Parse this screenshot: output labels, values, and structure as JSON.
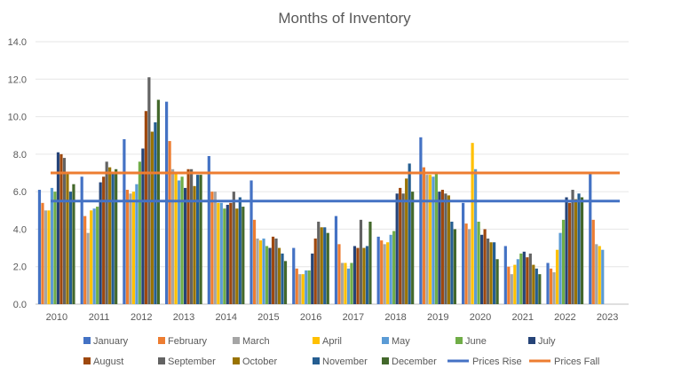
{
  "chart_data": {
    "type": "bar",
    "title": "Months of Inventory",
    "xlabel": "",
    "ylabel": "",
    "ylim": [
      0,
      14
    ],
    "y_ticks": [
      "0.0",
      "2.0",
      "4.0",
      "6.0",
      "8.0",
      "10.0",
      "12.0",
      "14.0"
    ],
    "grid": true,
    "legend_position": "bottom",
    "categories": [
      "2010",
      "2011",
      "2012",
      "2013",
      "2014",
      "2015",
      "2016",
      "2017",
      "2018",
      "2019",
      "2020",
      "2021",
      "2022",
      "2023"
    ],
    "series": [
      {
        "name": "January",
        "color": "#4472c4",
        "values": [
          6.1,
          6.8,
          8.8,
          10.8,
          7.9,
          6.6,
          3.0,
          4.7,
          3.6,
          8.9,
          5.4,
          3.1,
          2.2,
          7.0
        ]
      },
      {
        "name": "February",
        "color": "#ed7d31",
        "values": [
          5.4,
          4.7,
          6.1,
          8.7,
          6.0,
          4.5,
          1.9,
          3.2,
          3.4,
          7.3,
          4.3,
          2.0,
          1.9,
          4.5
        ]
      },
      {
        "name": "March",
        "color": "#a5a5a5",
        "values": [
          5.0,
          3.8,
          5.9,
          7.2,
          6.0,
          3.5,
          1.6,
          2.2,
          3.2,
          6.9,
          4.0,
          1.6,
          1.7,
          3.2
        ]
      },
      {
        "name": "April",
        "color": "#ffc000",
        "values": [
          5.0,
          5.0,
          6.0,
          7.0,
          5.4,
          3.4,
          1.6,
          2.2,
          3.3,
          6.9,
          8.6,
          2.1,
          2.9,
          3.1
        ]
      },
      {
        "name": "May",
        "color": "#5b9bd5",
        "values": [
          6.2,
          5.1,
          6.4,
          6.6,
          5.4,
          3.5,
          1.8,
          1.9,
          3.7,
          6.8,
          7.2,
          2.4,
          3.8,
          2.9
        ]
      },
      {
        "name": "June",
        "color": "#70ad47",
        "values": [
          6.0,
          5.2,
          7.6,
          6.8,
          5.1,
          3.1,
          1.8,
          2.2,
          3.9,
          7.0,
          4.4,
          2.7,
          4.5,
          null
        ]
      },
      {
        "name": "July",
        "color": "#264478",
        "values": [
          8.1,
          6.5,
          8.3,
          6.2,
          5.3,
          3.0,
          2.7,
          3.1,
          5.9,
          6.0,
          3.7,
          2.8,
          5.7,
          null
        ]
      },
      {
        "name": "August",
        "color": "#9e480e",
        "values": [
          8.0,
          6.8,
          10.3,
          7.2,
          5.4,
          3.6,
          3.5,
          3.0,
          6.2,
          6.1,
          4.0,
          2.5,
          5.4,
          null
        ]
      },
      {
        "name": "September",
        "color": "#636363",
        "values": [
          7.8,
          7.6,
          12.1,
          7.2,
          6.0,
          3.5,
          4.4,
          4.5,
          5.9,
          5.9,
          3.5,
          2.7,
          6.1,
          null
        ]
      },
      {
        "name": "October",
        "color": "#997300",
        "values": [
          7.0,
          7.3,
          9.2,
          6.3,
          5.1,
          3.0,
          4.1,
          3.0,
          6.7,
          5.8,
          3.3,
          2.1,
          5.6,
          null
        ]
      },
      {
        "name": "November",
        "color": "#255e91",
        "values": [
          6.0,
          7.0,
          9.7,
          6.9,
          5.7,
          2.7,
          4.1,
          3.1,
          7.5,
          4.4,
          3.3,
          1.9,
          5.9,
          null
        ]
      },
      {
        "name": "December",
        "color": "#43682b",
        "values": [
          6.4,
          7.2,
          10.9,
          6.9,
          5.2,
          2.3,
          3.8,
          4.4,
          6.0,
          4.0,
          2.4,
          1.6,
          5.7,
          null
        ]
      }
    ],
    "reference_lines": [
      {
        "name": "Prices Rise",
        "color": "#4472c4",
        "value": 5.5
      },
      {
        "name": "Prices Fall",
        "color": "#ed7d31",
        "value": 7.0
      }
    ]
  }
}
